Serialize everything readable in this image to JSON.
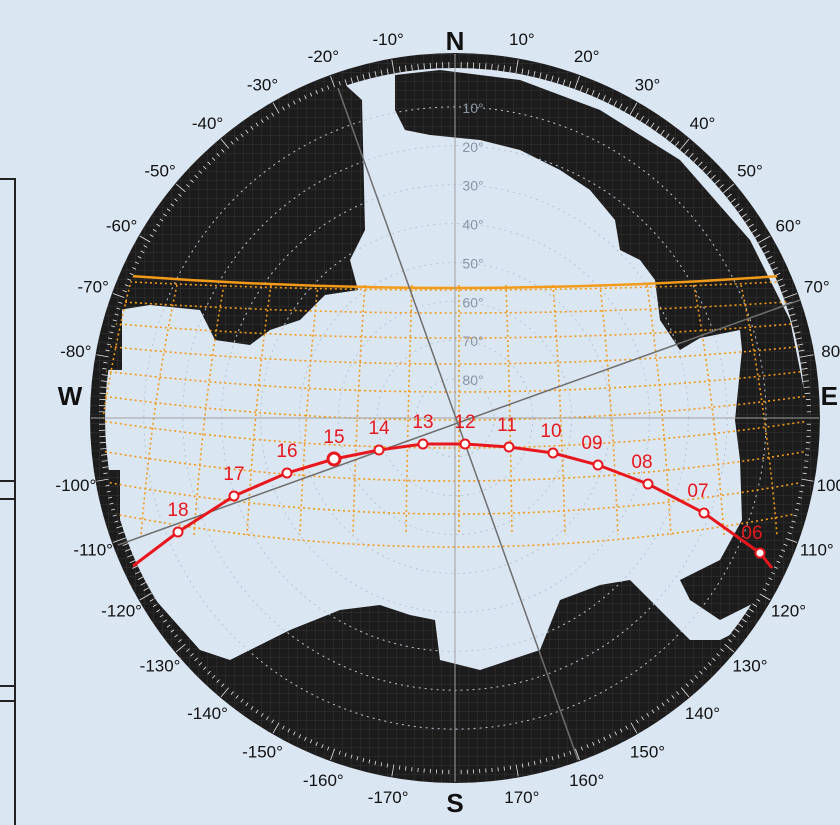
{
  "cardinals": {
    "north": "N",
    "south": "S",
    "west": "W",
    "east": "E"
  },
  "azimuth_labels": [
    "10°",
    "20°",
    "30°",
    "40°",
    "50°",
    "60°",
    "70°",
    "80°",
    "100°",
    "110°",
    "120°",
    "130°",
    "140°",
    "150°",
    "160°",
    "170°",
    "-10°",
    "-20°",
    "-30°",
    "-40°",
    "-50°",
    "-60°",
    "-70°",
    "-80°",
    "-100°",
    "-110°",
    "-120°",
    "-130°",
    "-140°",
    "-150°",
    "-160°",
    "-170°"
  ],
  "elevation_labels": [
    "10°",
    "20°",
    "30°",
    "40°",
    "50°",
    "60°",
    "70°",
    "80°"
  ],
  "sun_path": {
    "color": "#e8171d",
    "hours": [
      "06",
      "07",
      "08",
      "09",
      "10",
      "11",
      "12",
      "13",
      "14",
      "15",
      "16",
      "17",
      "18"
    ],
    "highlighted_hour": "15"
  },
  "colors": {
    "horizon_mask": "#1c1c1c",
    "sky": "#dbe6f3",
    "analemma": "#f39a18",
    "sun_path": "#e8171d",
    "axis_lines": "#8c8c8c"
  }
}
